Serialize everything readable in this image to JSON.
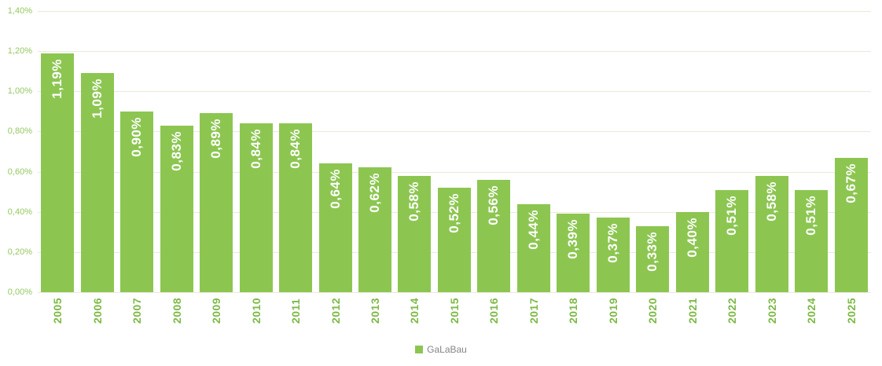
{
  "chart_data": {
    "type": "bar",
    "title": "",
    "xlabel": "",
    "ylabel": "",
    "categories": [
      "2005",
      "2006",
      "2007",
      "2008",
      "2009",
      "2010",
      "2011",
      "2012",
      "2013",
      "2014",
      "2015",
      "2016",
      "2017",
      "2018",
      "2019",
      "2020",
      "2021",
      "2022",
      "2023",
      "2024",
      "2025"
    ],
    "series": [
      {
        "name": "GaLaBau",
        "values": [
          1.19,
          1.09,
          0.9,
          0.83,
          0.89,
          0.84,
          0.84,
          0.64,
          0.62,
          0.58,
          0.52,
          0.56,
          0.44,
          0.39,
          0.37,
          0.33,
          0.4,
          0.51,
          0.58,
          0.51,
          0.67
        ],
        "value_labels": [
          "1,19%",
          "1,09%",
          "0,90%",
          "0,83%",
          "0,89%",
          "0,84%",
          "0,84%",
          "0,64%",
          "0,62%",
          "0,58%",
          "0,52%",
          "0,56%",
          "0,44%",
          "0,39%",
          "0,37%",
          "0,33%",
          "0,40%",
          "0,51%",
          "0,58%",
          "0,51%",
          "0,67%"
        ]
      }
    ],
    "ylim": [
      0,
      1.4
    ],
    "ytick_step": 0.2,
    "ytick_labels": [
      "0,00%",
      "0,20%",
      "0,40%",
      "0,60%",
      "0,80%",
      "1,00%",
      "1,20%",
      "1,40%"
    ],
    "grid": "horizontal",
    "legend_position": "bottom-center"
  },
  "legend": {
    "label": "GaLaBau"
  },
  "colors": {
    "bar": "#8cc651",
    "gridline": "#ece9d8",
    "ytick_text": "#94c85e",
    "year_text": "#7cb944",
    "value_text": "#ffffff",
    "legend_text": "#848484",
    "background": "#ffffff"
  }
}
